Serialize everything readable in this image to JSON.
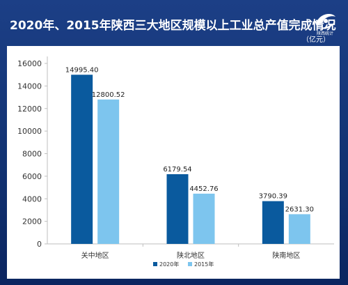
{
  "header": {
    "title": "2020年、2015年陕西三大地区规模以上工业总产值完成情况",
    "unit": "（亿元）",
    "logo_text": "陕西统计"
  },
  "colors": {
    "background": "#1c3f86",
    "series_2020": "#0a5a9e",
    "series_2015": "#7dc5ee",
    "axis": "#bfbfbf"
  },
  "chart_data": {
    "type": "bar",
    "categories": [
      "关中地区",
      "陕北地区",
      "陕南地区"
    ],
    "series": [
      {
        "name": "2020年",
        "values": [
          14995.4,
          6179.54,
          3790.39
        ],
        "labels": [
          "14995.40",
          "6179.54",
          "3790.39"
        ]
      },
      {
        "name": "2015年",
        "values": [
          12800.52,
          4452.76,
          2631.3
        ],
        "labels": [
          "12800.52",
          "4452.76",
          "2631.30"
        ]
      }
    ],
    "yticks": [
      "0",
      "2000",
      "4000",
      "6000",
      "8000",
      "10000",
      "12000",
      "14000",
      "16000"
    ],
    "ylim": [
      0,
      16000
    ],
    "legend_position": "bottom-center",
    "grid": false
  }
}
